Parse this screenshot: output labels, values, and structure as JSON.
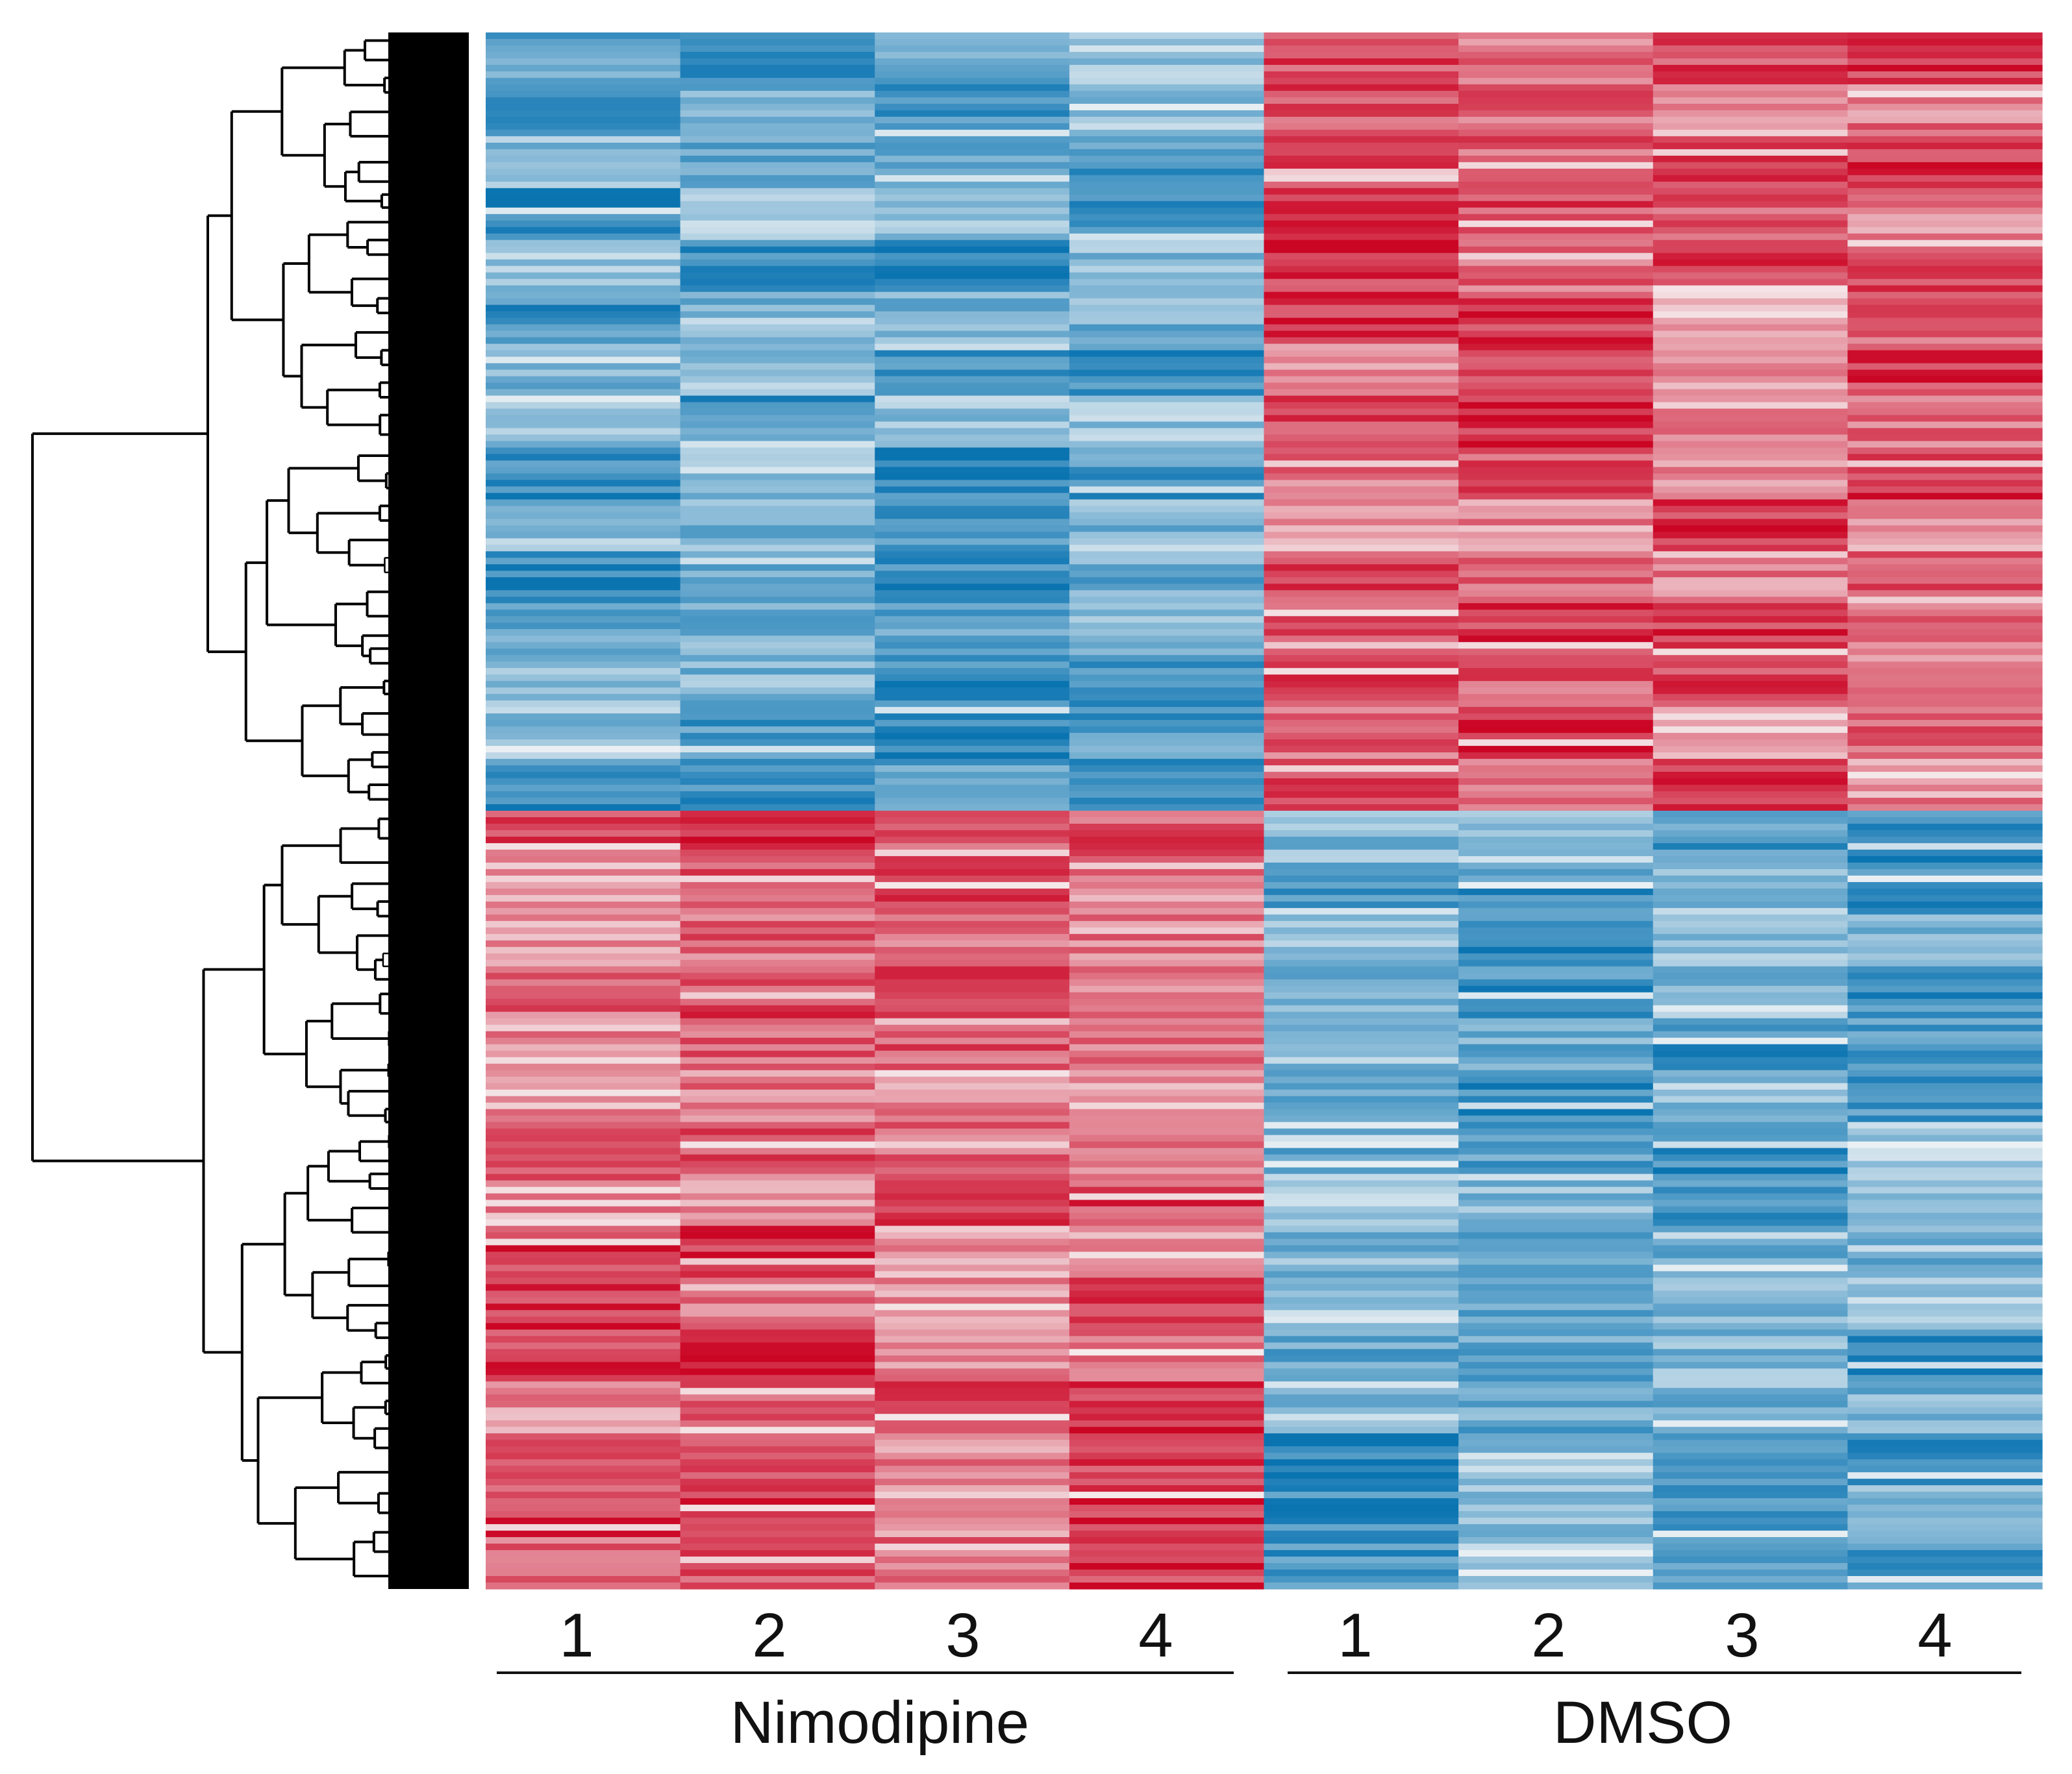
{
  "chart_data": {
    "type": "heatmap",
    "title": "",
    "xlabel": "",
    "ylabel": "",
    "groups": [
      {
        "name": "Nimodipine",
        "columns": [
          "1",
          "2",
          "3",
          "4"
        ]
      },
      {
        "name": "DMSO",
        "columns": [
          "1",
          "2",
          "3",
          "4"
        ]
      }
    ],
    "columns": [
      "1",
      "2",
      "3",
      "4",
      "1",
      "2",
      "3",
      "4"
    ],
    "row_count": 240,
    "row_clusters": [
      {
        "rows": [
          0,
          120
        ],
        "pattern": [
          "low",
          "low",
          "low",
          "low",
          "high",
          "high",
          "high",
          "high"
        ]
      },
      {
        "rows": [
          120,
          240
        ],
        "pattern": [
          "high",
          "high",
          "high",
          "high",
          "low",
          "low",
          "low",
          "low"
        ]
      }
    ],
    "row_dendrogram": true,
    "color_scale": {
      "low": "#0571b0",
      "mid": "#f7f7f7",
      "high": "#ca0020"
    },
    "legend": "none",
    "grid": false
  }
}
